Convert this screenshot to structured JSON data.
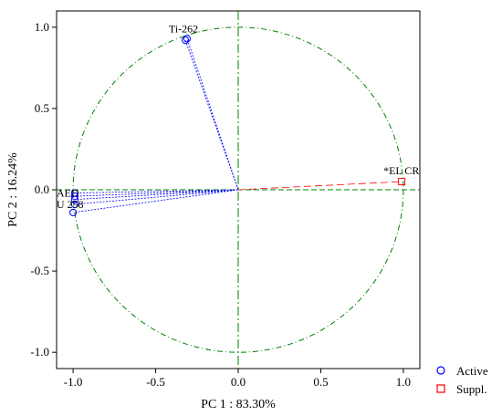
{
  "chart_data": {
    "type": "scatter",
    "subtype": "pca-correlation-circle",
    "xlabel": "PC 1 : 83.30%",
    "ylabel": "PC 2 : 16.24%",
    "xlim": [
      -1.1,
      1.1
    ],
    "ylim": [
      -1.1,
      1.1
    ],
    "xticks": [
      "-1.0",
      "-0.5",
      "0.0",
      "0.5",
      "1.0"
    ],
    "yticks": [
      "1.0",
      "0.5",
      "0.0",
      "-0.5",
      "-1.0"
    ],
    "grid": false,
    "unit_circle": true,
    "legend_position": "bottom-right",
    "series": [
      {
        "name": "Active",
        "color": "#0000ff",
        "marker": "circle",
        "points": [
          {
            "label": "Ti-262",
            "x": -0.31,
            "y": 0.93
          },
          {
            "label": "",
            "x": -0.32,
            "y": 0.92
          },
          {
            "label": "AED",
            "x": -0.99,
            "y": -0.02
          },
          {
            "label": "",
            "x": -0.99,
            "y": -0.04
          },
          {
            "label": "",
            "x": -0.99,
            "y": -0.06
          },
          {
            "label": "U 258",
            "x": -0.99,
            "y": -0.09
          },
          {
            "label": "",
            "x": -1.0,
            "y": -0.14
          }
        ]
      },
      {
        "name": "Suppl.",
        "color": "#ff0000",
        "marker": "square",
        "points": [
          {
            "label": "*EL CR",
            "x": 0.99,
            "y": 0.05
          }
        ]
      }
    ]
  },
  "colors": {
    "circle": "#008000",
    "active": "#0000ff",
    "supplementary": "#ff0000"
  }
}
